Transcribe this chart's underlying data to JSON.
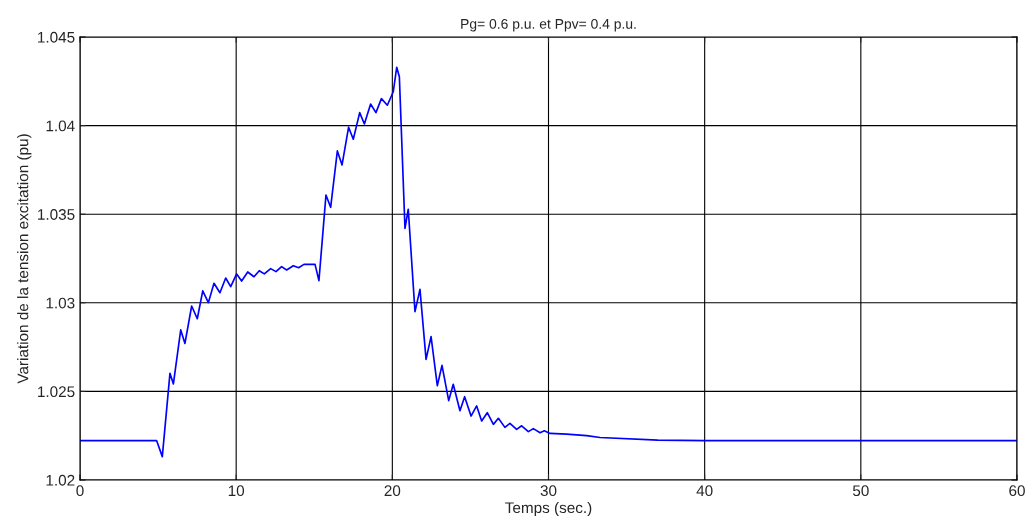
{
  "chart_data": {
    "type": "line",
    "title": "Pg= 0.6 p.u. et Ppv= 0.4 p.u.",
    "xlabel": "Temps (sec.)",
    "ylabel": "Variation de la tension excitation (pu)",
    "series": [
      {
        "color": "#0000ff",
        "x": [
          0,
          4.91,
          5.27,
          5.76,
          5.98,
          6.45,
          6.72,
          7.15,
          7.51,
          7.86,
          8.22,
          8.58,
          8.96,
          9.33,
          9.65,
          10.03,
          10.35,
          10.74,
          11.14,
          11.48,
          11.8,
          12.21,
          12.55,
          12.91,
          13.23,
          13.66,
          14.0,
          14.34,
          15.05,
          15.3,
          15.75,
          16.05,
          16.48,
          16.78,
          17.2,
          17.5,
          17.91,
          18.21,
          18.61,
          18.95,
          19.3,
          19.68,
          20.06,
          20.28,
          20.45,
          20.81,
          21.02,
          21.45,
          21.77,
          22.16,
          22.48,
          22.88,
          23.18,
          23.61,
          23.9,
          24.33,
          24.63,
          25.04,
          25.4,
          25.72,
          26.08,
          26.47,
          26.79,
          27.21,
          27.53,
          27.96,
          28.28,
          28.71,
          29.03,
          29.46,
          29.73,
          30.1,
          31.16,
          32.44,
          33.3,
          37,
          40,
          60
        ],
        "values": [
          1.02222,
          1.02222,
          1.02132,
          1.02602,
          1.02542,
          1.02847,
          1.02771,
          1.02982,
          1.0291,
          1.03067,
          1.03001,
          1.0311,
          1.03057,
          1.0314,
          1.03091,
          1.03163,
          1.03123,
          1.03174,
          1.03147,
          1.03181,
          1.03163,
          1.03193,
          1.03176,
          1.03204,
          1.03185,
          1.03209,
          1.03198,
          1.03217,
          1.03217,
          1.03125,
          1.03608,
          1.03539,
          1.03857,
          1.03778,
          1.03991,
          1.03923,
          1.04073,
          1.04009,
          1.04122,
          1.04073,
          1.04152,
          1.04115,
          1.04191,
          1.04329,
          1.04276,
          1.0342,
          1.03528,
          1.0295,
          1.03076,
          1.02681,
          1.02809,
          1.02532,
          1.02647,
          1.02448,
          1.0254,
          1.02391,
          1.0247,
          1.02361,
          1.02418,
          1.02333,
          1.0238,
          1.02314,
          1.02348,
          1.02297,
          1.0232,
          1.02286,
          1.02306,
          1.02273,
          1.0229,
          1.02267,
          1.02278,
          1.02263,
          1.02259,
          1.0225,
          1.0224,
          1.02225,
          1.02222,
          1.02222
        ]
      }
    ],
    "xlim": [
      0,
      60
    ],
    "ylim": [
      1.02,
      1.045
    ],
    "xticks": [
      0,
      10,
      20,
      30,
      40,
      50,
      60
    ],
    "yticks": [
      1.02,
      1.025,
      1.03,
      1.035,
      1.04,
      1.045
    ],
    "grid": true,
    "marker": "none",
    "line_style": "solid"
  }
}
